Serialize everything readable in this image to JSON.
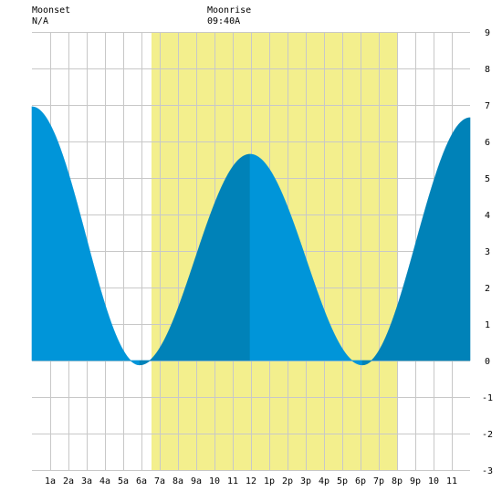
{
  "header": {
    "moonset_label": "Moonset",
    "moonset_time": "N/A",
    "moonrise_label": "Moonrise",
    "moonrise_time": "09:40A"
  },
  "colors": {
    "daylight": "#f3ef8d",
    "tide_light": "#0096d9",
    "tide_dark": "#0083b8",
    "grid": "#c8c8c8",
    "background": "#ffffff"
  },
  "chart_data": {
    "type": "area",
    "xlim": [
      0,
      24
    ],
    "ylim": [
      -3,
      9
    ],
    "y_ticks": [
      -3,
      -2,
      -1,
      0,
      1,
      2,
      3,
      4,
      5,
      6,
      7,
      8,
      9
    ],
    "x_ticks": [
      {
        "x": 1,
        "label": "1a"
      },
      {
        "x": 2,
        "label": "2a"
      },
      {
        "x": 3,
        "label": "3a"
      },
      {
        "x": 4,
        "label": "4a"
      },
      {
        "x": 5,
        "label": "5a"
      },
      {
        "x": 6,
        "label": "6a"
      },
      {
        "x": 7,
        "label": "7a"
      },
      {
        "x": 8,
        "label": "8a"
      },
      {
        "x": 9,
        "label": "9a"
      },
      {
        "x": 10,
        "label": "10"
      },
      {
        "x": 11,
        "label": "11"
      },
      {
        "x": 12,
        "label": "12"
      },
      {
        "x": 13,
        "label": "1p"
      },
      {
        "x": 14,
        "label": "2p"
      },
      {
        "x": 15,
        "label": "3p"
      },
      {
        "x": 16,
        "label": "4p"
      },
      {
        "x": 17,
        "label": "5p"
      },
      {
        "x": 18,
        "label": "6p"
      },
      {
        "x": 19,
        "label": "7p"
      },
      {
        "x": 20,
        "label": "8p"
      },
      {
        "x": 21,
        "label": "9p"
      },
      {
        "x": 22,
        "label": "10"
      },
      {
        "x": 23,
        "label": "11"
      }
    ],
    "daylight_hours": [
      6.55,
      20.0
    ],
    "tide_extrema": [
      {
        "hour": 0.0,
        "height": 6.95
      },
      {
        "hour": 5.9,
        "height": -0.12
      },
      {
        "hour": 11.95,
        "height": 5.65
      },
      {
        "hour": 18.1,
        "height": -0.12
      },
      {
        "hour": 24.0,
        "height": 6.65
      }
    ],
    "flood_periods": [
      [
        5.9,
        11.95
      ],
      [
        18.1,
        24.0
      ]
    ],
    "grid": true
  }
}
